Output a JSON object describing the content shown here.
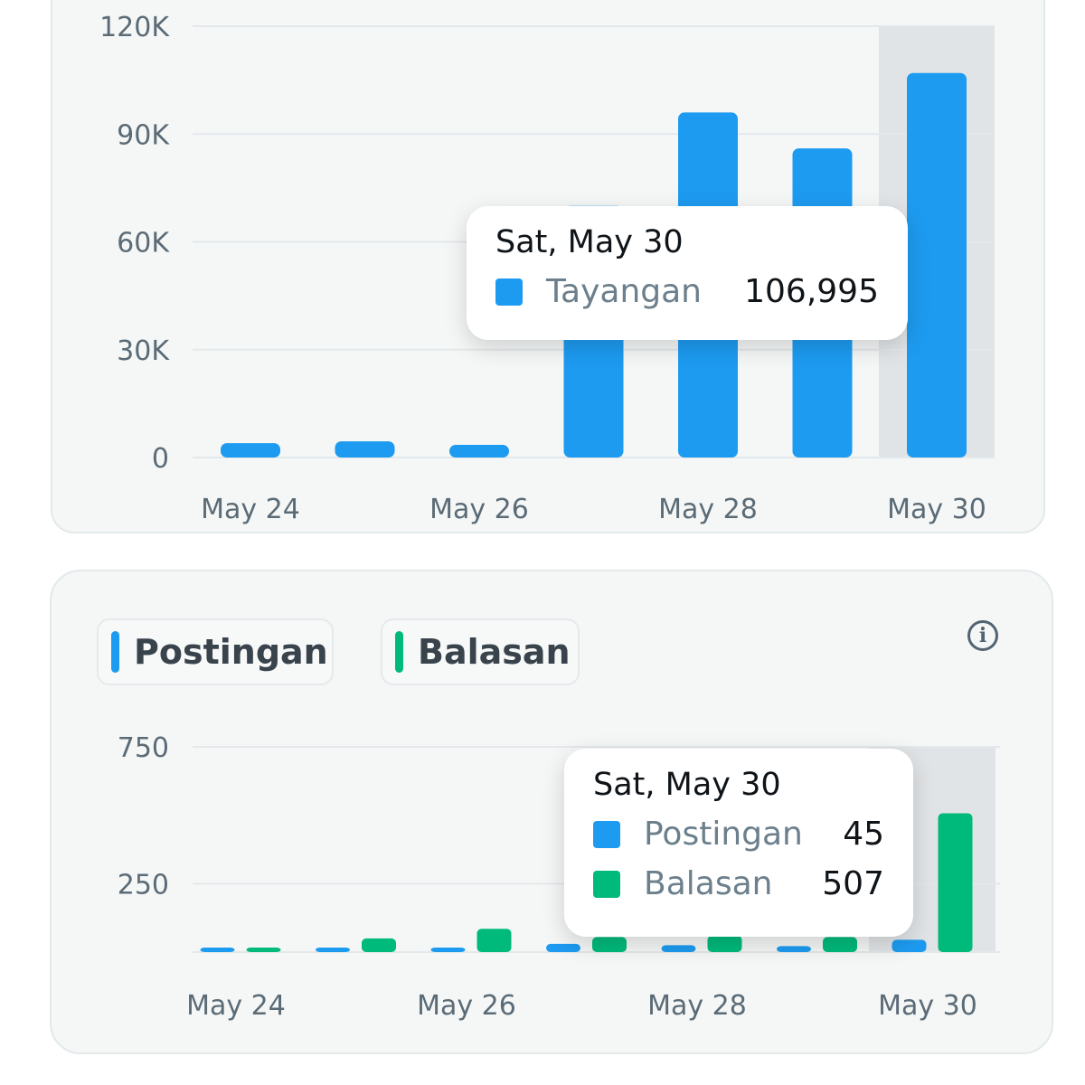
{
  "chart_data": [
    {
      "type": "bar",
      "categories": [
        "May 24",
        "May 25",
        "May 26",
        "May 27",
        "May 28",
        "May 29",
        "May 30"
      ],
      "x_tick_labels": [
        "May 24",
        "May 26",
        "May 28",
        "May 30"
      ],
      "series": [
        {
          "name": "Tayangan",
          "color": "#1d9bf0",
          "values": [
            4000,
            4500,
            3500,
            70000,
            96000,
            86000,
            106995
          ]
        }
      ],
      "y_ticks": [
        "0",
        "30K",
        "60K",
        "90K",
        "120K"
      ],
      "ylim": [
        0,
        120000
      ],
      "highlighted_category": "May 30",
      "tooltip": {
        "title": "Sat, May 30",
        "rows": [
          {
            "label": "Tayangan",
            "value": "106,995",
            "color": "#1d9bf0"
          }
        ]
      }
    },
    {
      "type": "bar",
      "categories": [
        "May 24",
        "May 25",
        "May 26",
        "May 27",
        "May 28",
        "May 29",
        "May 30"
      ],
      "x_tick_labels": [
        "May 24",
        "May 26",
        "May 28",
        "May 30"
      ],
      "series": [
        {
          "name": "Postingan",
          "color": "#1d9bf0",
          "values": [
            8,
            8,
            8,
            30,
            25,
            22,
            45
          ]
        },
        {
          "name": "Balasan",
          "color": "#00ba7c",
          "values": [
            15,
            50,
            85,
            55,
            60,
            55,
            507
          ]
        }
      ],
      "y_ticks": [
        "250",
        "750"
      ],
      "ylim": [
        0,
        750
      ],
      "highlighted_category": "May 30",
      "legend": [
        "Postingan",
        "Balasan"
      ],
      "tooltip": {
        "title": "Sat, May 30",
        "rows": [
          {
            "label": "Postingan",
            "value": "45",
            "color": "#1d9bf0"
          },
          {
            "label": "Balasan",
            "value": "507",
            "color": "#00ba7c"
          }
        ]
      }
    }
  ],
  "legend2": {
    "postingan": "Postingan",
    "balasan": "Balasan"
  },
  "info_icon": "info-icon",
  "info_glyph": "i"
}
